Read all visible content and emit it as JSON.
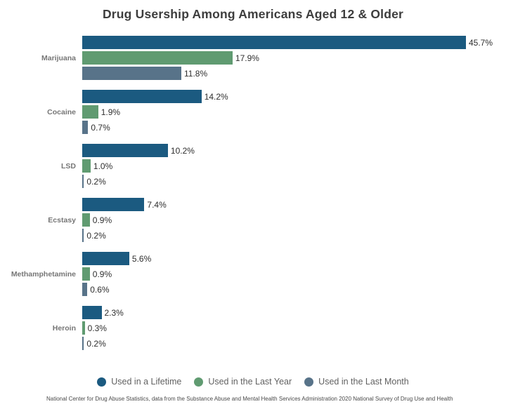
{
  "title": "Drug Usership Among Americans Aged 12 & Older",
  "chart_data": {
    "type": "bar",
    "orientation": "horizontal",
    "title": "Drug Usership Among Americans Aged 12 & Older",
    "categories": [
      "Marijuana",
      "Cocaine",
      "LSD",
      "Ecstasy",
      "Methamphetamine",
      "Heroin"
    ],
    "series": [
      {
        "name": "Used in a Lifetime",
        "color": "#1b5a80",
        "values": [
          45.7,
          14.2,
          10.2,
          7.4,
          5.6,
          2.3
        ]
      },
      {
        "name": "Used in the Last Year",
        "color": "#609b71",
        "values": [
          17.9,
          1.9,
          1.0,
          0.9,
          0.9,
          0.3
        ]
      },
      {
        "name": "Used in the Last Month",
        "color": "#587389",
        "values": [
          11.8,
          0.7,
          0.2,
          0.2,
          0.6,
          0.2
        ]
      }
    ],
    "value_label_format": "percent_one_decimal",
    "xlim": [
      0,
      47.5
    ],
    "grid": false,
    "legend_position": "bottom"
  },
  "footer": {
    "source": "National Center for Drug Abuse Statistics, data from the Substance Abuse and Mental Health Services Administration 2020 National Survey of Drug Use and Health"
  }
}
